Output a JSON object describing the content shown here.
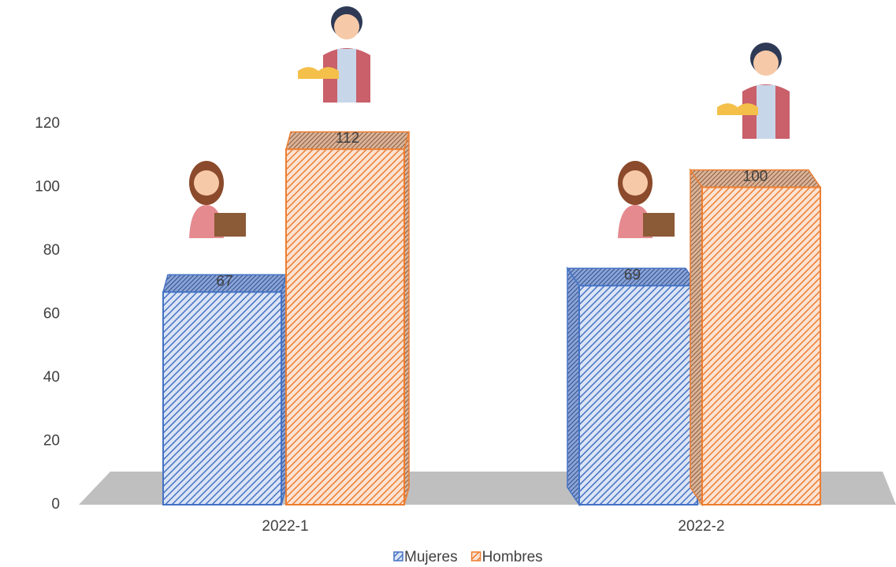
{
  "chart_data": {
    "type": "bar3d",
    "categories": [
      "2022-1",
      "2022-2"
    ],
    "series": [
      {
        "name": "Mujeres",
        "color": "#4472c4",
        "values": [
          67,
          69
        ]
      },
      {
        "name": "Hombres",
        "color": "#ed7d31",
        "values": [
          112,
          100
        ]
      }
    ],
    "ylim": [
      0,
      120
    ],
    "yticks": [
      0,
      20,
      40,
      60,
      80,
      100,
      120
    ],
    "grid": false,
    "legend": "bottom"
  }
}
